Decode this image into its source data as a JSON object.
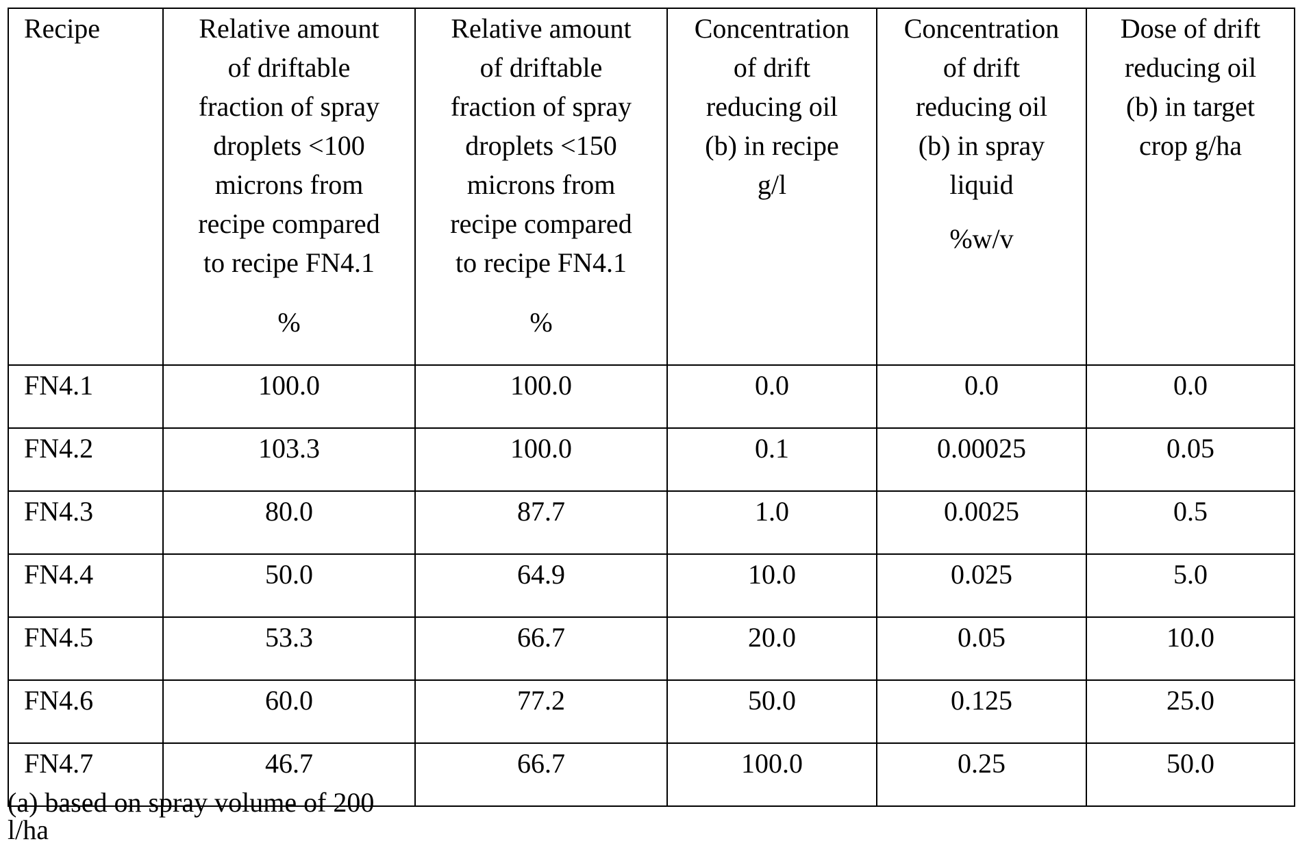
{
  "table": {
    "columns": [
      {
        "lines": [
          "Recipe"
        ],
        "unit": ""
      },
      {
        "lines": [
          "Relative amount",
          "of driftable",
          "fraction of spray",
          "droplets <100",
          "microns from",
          "recipe compared",
          "to recipe FN4.1"
        ],
        "unit": "%"
      },
      {
        "lines": [
          "Relative amount",
          "of driftable",
          "fraction of spray",
          "droplets <150",
          "microns from",
          "recipe compared",
          "to recipe FN4.1"
        ],
        "unit": "%"
      },
      {
        "lines": [
          "Concentration",
          "of drift",
          "reducing oil",
          "(b) in recipe",
          "g/l"
        ],
        "unit": ""
      },
      {
        "lines": [
          "Concentration",
          "of drift",
          "reducing oil",
          "(b) in spray",
          "liquid"
        ],
        "unit": "%w/v"
      },
      {
        "lines": [
          "Dose of drift",
          "reducing oil",
          "(b) in target",
          "crop g/ha"
        ],
        "unit": ""
      }
    ],
    "rows": [
      [
        "FN4.1",
        "100.0",
        "100.0",
        "0.0",
        "0.0",
        "0.0"
      ],
      [
        "FN4.2",
        "103.3",
        "100.0",
        "0.1",
        "0.00025",
        "0.05"
      ],
      [
        "FN4.3",
        "80.0",
        "87.7",
        "1.0",
        "0.0025",
        "0.5"
      ],
      [
        "FN4.4",
        "50.0",
        "64.9",
        "10.0",
        "0.025",
        "5.0"
      ],
      [
        "FN4.5",
        "53.3",
        "66.7",
        "20.0",
        "0.05",
        "10.0"
      ],
      [
        "FN4.6",
        "60.0",
        "77.2",
        "50.0",
        "0.125",
        "25.0"
      ],
      [
        "FN4.7",
        "46.7",
        "66.7",
        "100.0",
        "0.25",
        "50.0"
      ]
    ]
  },
  "footnote": "(a) based on spray volume of 200 l/ha"
}
